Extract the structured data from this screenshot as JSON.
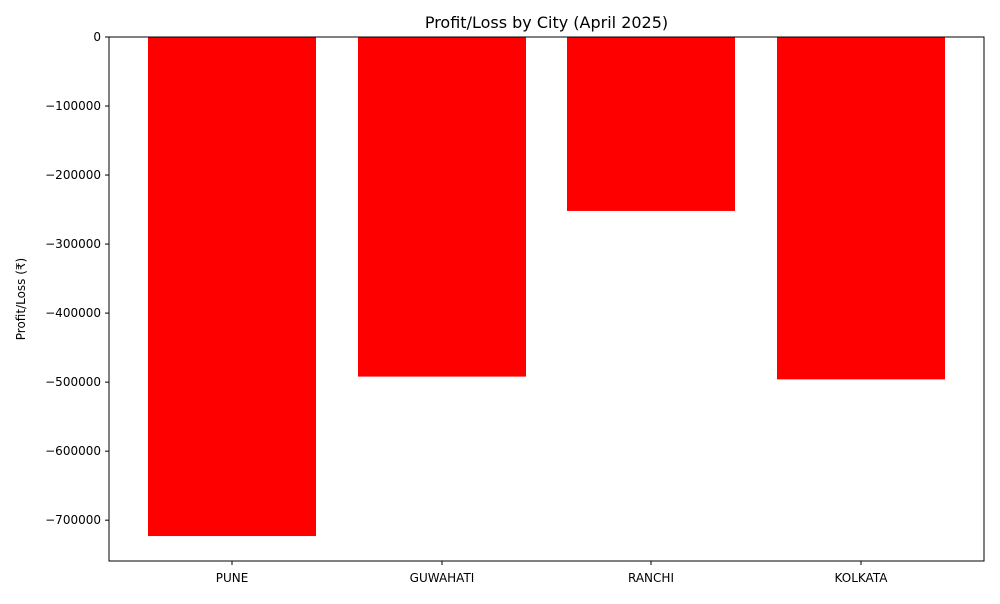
{
  "chart_data": {
    "type": "bar",
    "title": "Profit/Loss by City (April 2025)",
    "xlabel": "",
    "ylabel": "Profit/Loss (₹)",
    "categories": [
      "PUNE",
      "GUWAHATI",
      "RANCHI",
      "KOLKATA"
    ],
    "values": [
      -723000,
      -492000,
      -252000,
      -496000
    ],
    "ylim": [
      -759150,
      0
    ],
    "yticks": [
      0,
      -100000,
      -200000,
      -300000,
      -400000,
      -500000,
      -600000,
      -700000
    ],
    "ytick_labels": [
      "0",
      "−100000",
      "−200000",
      "−300000",
      "−400000",
      "−500000",
      "−600000",
      "−700000"
    ],
    "bar_color": "#ff0000",
    "grid": false
  }
}
